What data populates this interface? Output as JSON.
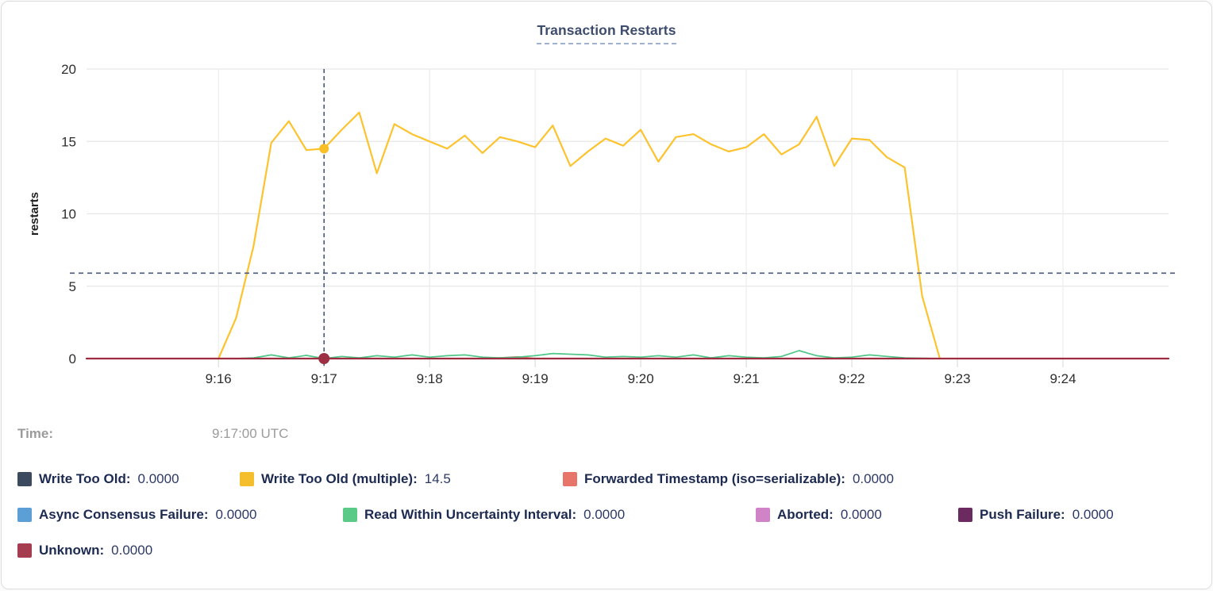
{
  "title": "Transaction Restarts",
  "hover_readout": {
    "label": "Time:",
    "value": "9:17:00 UTC"
  },
  "legend": {
    "items": [
      {
        "label": "Write Too Old:",
        "value": "0.0000",
        "color": "#3c4a60"
      },
      {
        "label": "Write Too Old (multiple):",
        "value": "14.5",
        "color": "#f4be2c"
      },
      {
        "label": "Forwarded Timestamp (iso=serializable):",
        "value": "0.0000",
        "color": "#e8756a"
      },
      {
        "label": "Async Consensus Failure:",
        "value": "0.0000",
        "color": "#5c9ed6"
      },
      {
        "label": "Read Within Uncertainty Interval:",
        "value": "0.0000",
        "color": "#5bca89"
      },
      {
        "label": "Aborted:",
        "value": "0.0000",
        "color": "#d083c6"
      },
      {
        "label": "Push Failure:",
        "value": "0.0000",
        "color": "#6b2a60"
      },
      {
        "label": "Unknown:",
        "value": "0.0000",
        "color": "#a63c50"
      }
    ]
  },
  "chart_data": {
    "type": "line",
    "title": "Transaction Restarts",
    "xlabel": "",
    "ylabel": "restarts",
    "ylim": [
      0,
      20
    ],
    "yticks": [
      0,
      5,
      10,
      15,
      20
    ],
    "x_domain_sec": [
      885,
      1500
    ],
    "x_domain_labels": [
      "9:14:45",
      "9:25:00"
    ],
    "grid": true,
    "legend_position": "bottom",
    "xticks": [
      {
        "sec": 960,
        "label": "9:16"
      },
      {
        "sec": 1020,
        "label": "9:17"
      },
      {
        "sec": 1080,
        "label": "9:18"
      },
      {
        "sec": 1140,
        "label": "9:19"
      },
      {
        "sec": 1200,
        "label": "9:20"
      },
      {
        "sec": 1260,
        "label": "9:21"
      },
      {
        "sec": 1320,
        "label": "9:22"
      },
      {
        "sec": 1380,
        "label": "9:23"
      },
      {
        "sec": 1440,
        "label": "9:24"
      }
    ],
    "series": [
      {
        "name": "Write Too Old",
        "color": "#3c4a60",
        "width": 1.5,
        "values": [
          [
            885,
            0
          ],
          [
            1500,
            0
          ]
        ]
      },
      {
        "name": "Write Too Old (multiple)",
        "color": "#fdc32e",
        "width": 2.2,
        "values": [
          [
            960,
            0
          ],
          [
            970,
            2.8
          ],
          [
            980,
            7.8
          ],
          [
            990,
            14.9
          ],
          [
            1000,
            16.4
          ],
          [
            1010,
            14.4
          ],
          [
            1020,
            14.5
          ],
          [
            1030,
            15.8
          ],
          [
            1040,
            17.0
          ],
          [
            1050,
            12.8
          ],
          [
            1060,
            16.2
          ],
          [
            1070,
            15.5
          ],
          [
            1080,
            15.0
          ],
          [
            1090,
            14.5
          ],
          [
            1100,
            15.4
          ],
          [
            1110,
            14.2
          ],
          [
            1120,
            15.3
          ],
          [
            1130,
            15.0
          ],
          [
            1140,
            14.6
          ],
          [
            1150,
            16.1
          ],
          [
            1160,
            13.3
          ],
          [
            1170,
            14.3
          ],
          [
            1180,
            15.2
          ],
          [
            1190,
            14.7
          ],
          [
            1200,
            15.8
          ],
          [
            1210,
            13.6
          ],
          [
            1220,
            15.3
          ],
          [
            1230,
            15.5
          ],
          [
            1240,
            14.8
          ],
          [
            1250,
            14.3
          ],
          [
            1260,
            14.6
          ],
          [
            1270,
            15.5
          ],
          [
            1280,
            14.1
          ],
          [
            1290,
            14.8
          ],
          [
            1300,
            16.7
          ],
          [
            1310,
            13.3
          ],
          [
            1320,
            15.2
          ],
          [
            1330,
            15.1
          ],
          [
            1340,
            13.9
          ],
          [
            1350,
            13.2
          ],
          [
            1360,
            4.3
          ],
          [
            1370,
            0
          ]
        ]
      },
      {
        "name": "Forwarded Timestamp (iso=serializable)",
        "color": "#e8756a",
        "width": 1.8,
        "values": [
          [
            885,
            0
          ],
          [
            1110,
            0
          ],
          [
            1120,
            0.05
          ],
          [
            1130,
            0.12
          ],
          [
            1140,
            0
          ],
          [
            1500,
            0
          ]
        ]
      },
      {
        "name": "Async Consensus Failure",
        "color": "#5c9ed6",
        "width": 1.5,
        "values": [
          [
            885,
            0
          ],
          [
            1500,
            0
          ]
        ]
      },
      {
        "name": "Read Within Uncertainty Interval",
        "color": "#4ec687",
        "width": 1.7,
        "values": [
          [
            885,
            0
          ],
          [
            960,
            0
          ],
          [
            970,
            0
          ],
          [
            980,
            0.05
          ],
          [
            990,
            0.25
          ],
          [
            1000,
            0.05
          ],
          [
            1010,
            0.22
          ],
          [
            1020,
            0
          ],
          [
            1030,
            0.15
          ],
          [
            1040,
            0.05
          ],
          [
            1050,
            0.2
          ],
          [
            1060,
            0.1
          ],
          [
            1070,
            0.25
          ],
          [
            1080,
            0.1
          ],
          [
            1090,
            0.2
          ],
          [
            1100,
            0.25
          ],
          [
            1110,
            0.1
          ],
          [
            1120,
            0.05
          ],
          [
            1130,
            0.1
          ],
          [
            1140,
            0.2
          ],
          [
            1150,
            0.35
          ],
          [
            1160,
            0.3
          ],
          [
            1170,
            0.25
          ],
          [
            1180,
            0.1
          ],
          [
            1190,
            0.15
          ],
          [
            1200,
            0.1
          ],
          [
            1210,
            0.2
          ],
          [
            1220,
            0.1
          ],
          [
            1230,
            0.25
          ],
          [
            1240,
            0.05
          ],
          [
            1250,
            0.2
          ],
          [
            1260,
            0.1
          ],
          [
            1270,
            0.05
          ],
          [
            1280,
            0.15
          ],
          [
            1290,
            0.55
          ],
          [
            1300,
            0.2
          ],
          [
            1310,
            0.05
          ],
          [
            1320,
            0.1
          ],
          [
            1330,
            0.25
          ],
          [
            1340,
            0.15
          ],
          [
            1350,
            0.05
          ],
          [
            1360,
            0.02
          ],
          [
            1370,
            0
          ],
          [
            1500,
            0
          ]
        ]
      },
      {
        "name": "Aborted",
        "color": "#d083c6",
        "width": 1.5,
        "values": [
          [
            885,
            0
          ],
          [
            1500,
            0
          ]
        ]
      },
      {
        "name": "Push Failure",
        "color": "#6b2a60",
        "width": 1.5,
        "values": [
          [
            885,
            0
          ],
          [
            1500,
            0
          ]
        ]
      },
      {
        "name": "Unknown",
        "color": "#9e2b3f",
        "width": 2.2,
        "values": [
          [
            885,
            0
          ],
          [
            1500,
            0
          ]
        ]
      }
    ],
    "hover": {
      "time_sec": 1020,
      "time_label": "9:17:00 UTC",
      "crosshair_y_value": 5.9,
      "crosshair_color": "#44597c",
      "dots": [
        {
          "series": "Write Too Old (multiple)",
          "value": 14.5,
          "color": "#f8bf27",
          "r": 6
        },
        {
          "series": "Unknown",
          "value": 0,
          "color": "#9c2f43",
          "r": 7
        }
      ]
    }
  }
}
